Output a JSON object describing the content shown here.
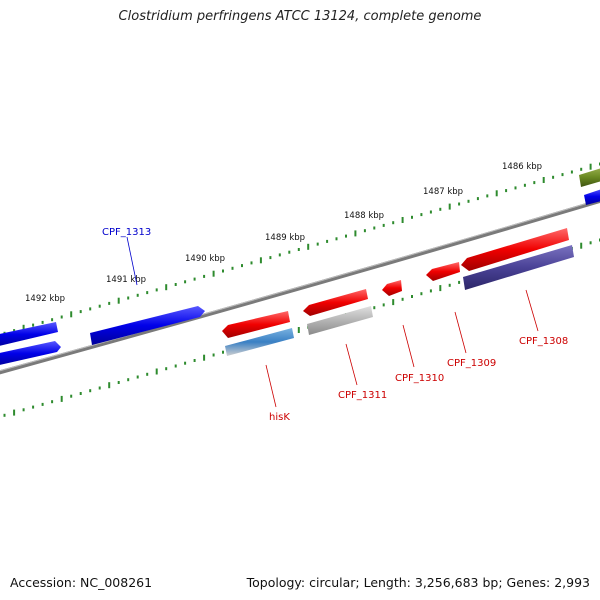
{
  "title": "Clostridium perfringens ATCC 13124, complete genome",
  "footer": {
    "accession": "Accession: NC_008261",
    "stats": "Topology: circular; Length: 3,256,683 bp; Genes: 2,993"
  },
  "colors": {
    "backbone": "#7a7a7a",
    "tick": "#2e8b2e",
    "forward_gene": "#0000ee",
    "reverse_gene": "#ee0000",
    "selected_label": "#0000cc",
    "gene_label": "#cc0000"
  },
  "ticks": [
    {
      "label": "1492 kbp"
    },
    {
      "label": "1491 kbp"
    },
    {
      "label": "1490 kbp"
    },
    {
      "label": "1489 kbp"
    },
    {
      "label": "1488 kbp"
    },
    {
      "label": "1487 kbp"
    },
    {
      "label": "1486 kbp"
    }
  ],
  "gene_labels": [
    {
      "name": "CPF_1313",
      "color": "#0000cc"
    },
    {
      "name": "hisK",
      "color": "#cc0000"
    },
    {
      "name": "CPF_1311",
      "color": "#cc0000"
    },
    {
      "name": "CPF_1310",
      "color": "#cc0000"
    },
    {
      "name": "CPF_1309",
      "color": "#cc0000"
    },
    {
      "name": "CPF_1308",
      "color": "#cc0000"
    }
  ]
}
